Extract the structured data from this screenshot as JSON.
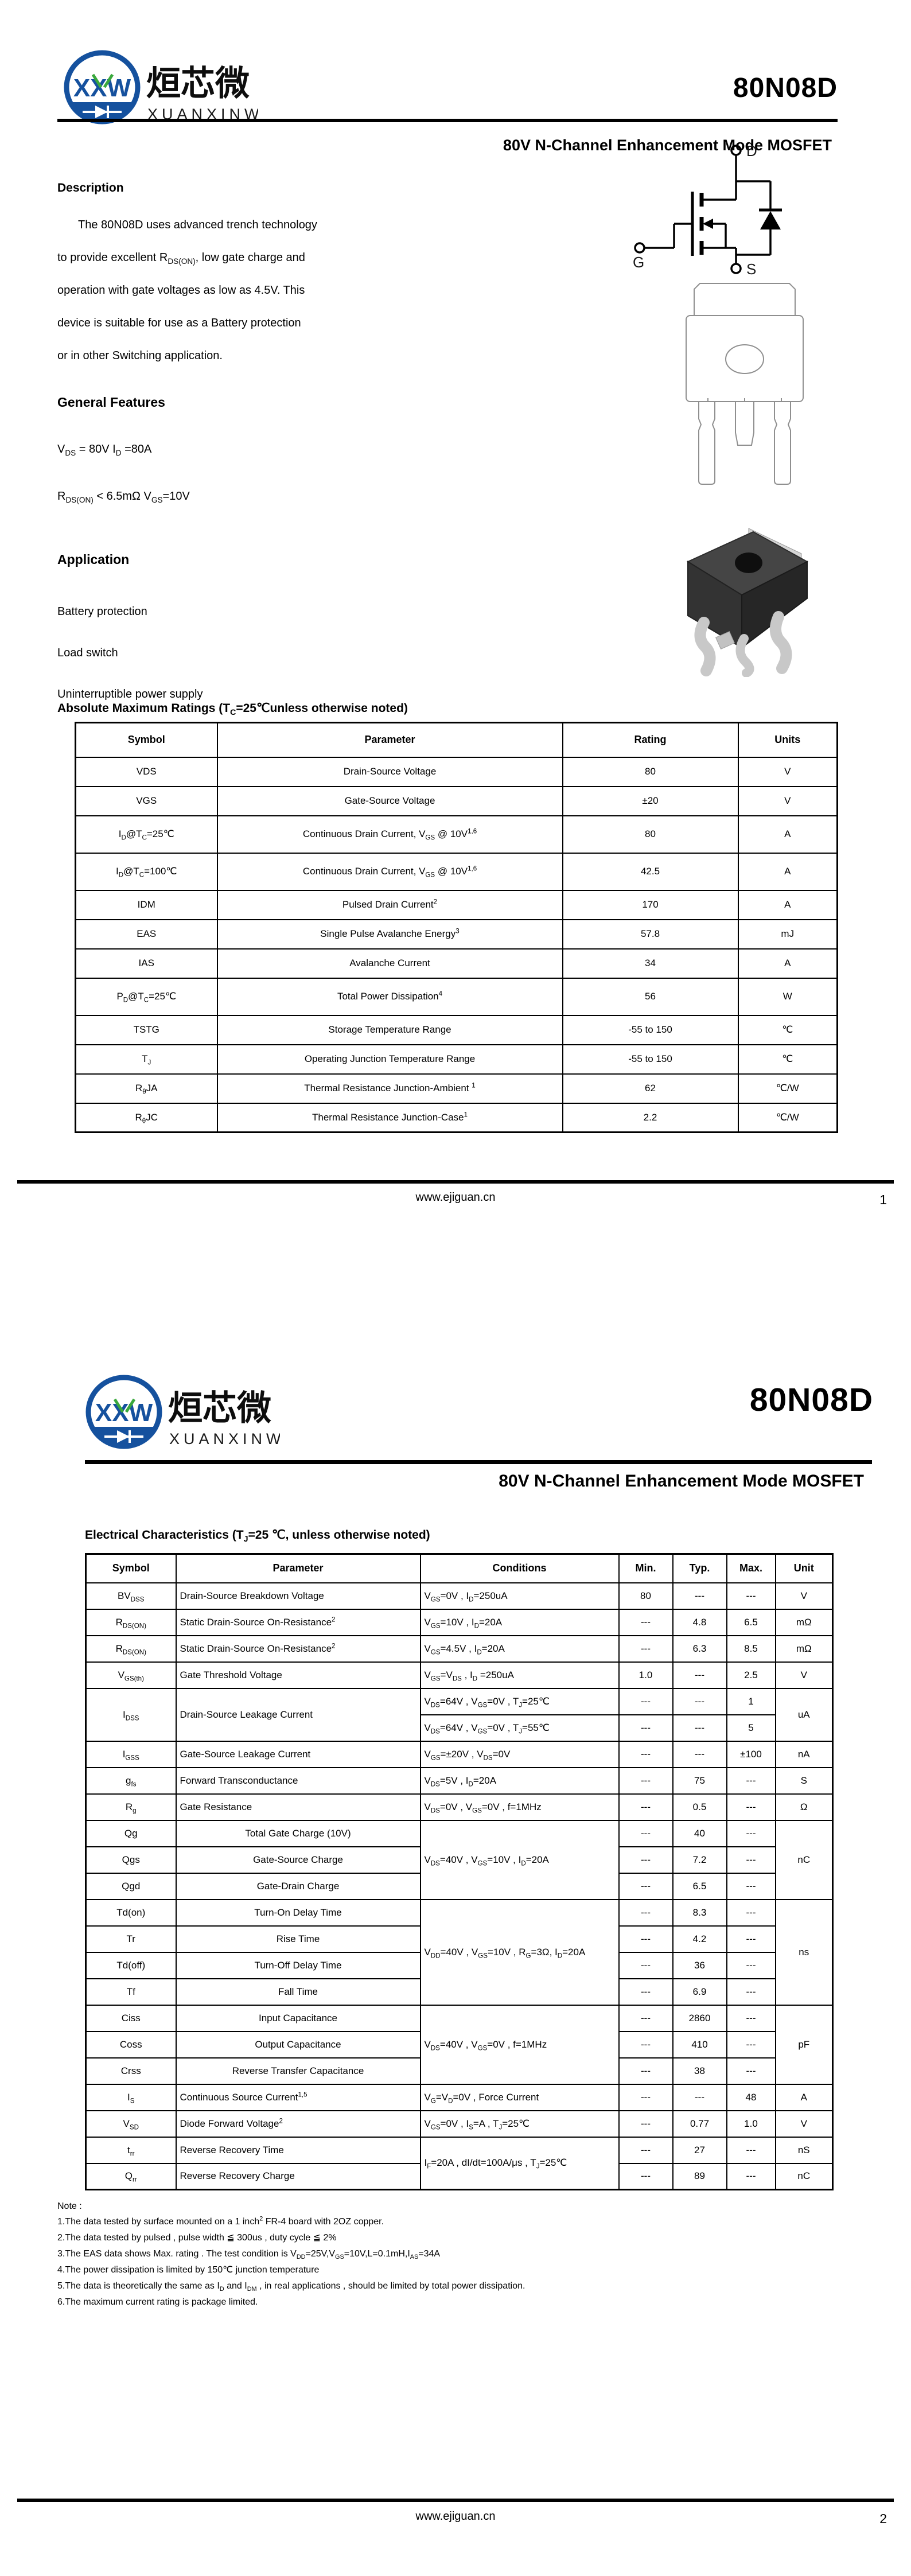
{
  "logo": {
    "monogram": "XXW",
    "name_zh": "烜芯微",
    "name_en": "XUANXINWEI",
    "blue": "#15519e",
    "green": "#3aa83c"
  },
  "doc": {
    "part_number": "80N08D",
    "subtitle": "80V N-Channel Enhancement Mode MOSFET",
    "footer_url": "www.ejiguan.cn"
  },
  "page1": {
    "page_number": "1",
    "description": {
      "heading": "Description",
      "lines": [
        "The  80N08D uses advanced trench technology",
        "to provide excellent R~DS(ON)~, low gate charge and",
        "operation with gate voltages as low as 4.5V. This",
        "device is suitable for use as a Battery protection",
        "or in other Switching application."
      ]
    },
    "general_features": {
      "heading": "General Features",
      "lines": [
        "V~DS~ = 80V  I~D~ =80A",
        "R~DS(ON)~ < 6.5mΩ V~GS~=10V"
      ]
    },
    "application": {
      "heading": "Application",
      "items": [
        "Battery protection",
        "Load switch",
        "Uninterruptible power supply"
      ]
    },
    "circuit_labels": {
      "drain": "D",
      "gate": "G",
      "source": "S"
    },
    "abs_max": {
      "heading": "Absolute Maximum Ratings (T~C~=25℃unless otherwise noted)",
      "columns": [
        "Symbol",
        "Parameter",
        "Rating",
        "Units"
      ],
      "col_align": [
        "c",
        "c",
        "c",
        "c"
      ],
      "rows": [
        [
          {
            "t": "VDS"
          },
          {
            "t": "Drain-Source Voltage"
          },
          {
            "t": "80"
          },
          {
            "t": "V"
          }
        ],
        [
          {
            "t": "VGS"
          },
          {
            "t": "Gate-Source Voltage"
          },
          {
            "t": "±20"
          },
          {
            "t": "V"
          }
        ],
        [
          {
            "t": "I~D~@T~C~=25℃"
          },
          {
            "t": "Continuous Drain Current, V~GS~ @ 10V^1,6^"
          },
          {
            "t": "80"
          },
          {
            "t": "A"
          }
        ],
        [
          {
            "t": "I~D~@T~C~=100℃"
          },
          {
            "t": "Continuous Drain Current, V~GS~ @ 10V^1,6^"
          },
          {
            "t": "42.5"
          },
          {
            "t": "A"
          }
        ],
        [
          {
            "t": "IDM"
          },
          {
            "t": "Pulsed Drain Current^2^"
          },
          {
            "t": "170"
          },
          {
            "t": "A"
          }
        ],
        [
          {
            "t": "EAS"
          },
          {
            "t": "Single Pulse Avalanche Energy^3^"
          },
          {
            "t": "57.8"
          },
          {
            "t": "mJ"
          }
        ],
        [
          {
            "t": "IAS"
          },
          {
            "t": "Avalanche Current"
          },
          {
            "t": "34"
          },
          {
            "t": "A"
          }
        ],
        [
          {
            "t": "P~D~@T~C~=25℃"
          },
          {
            "t": "Total Power Dissipation^4^"
          },
          {
            "t": "56"
          },
          {
            "t": "W"
          }
        ],
        [
          {
            "t": "TSTG"
          },
          {
            "t": "Storage Temperature Range"
          },
          {
            "t": "-55 to 150"
          },
          {
            "t": "℃"
          }
        ],
        [
          {
            "t": "T~J~"
          },
          {
            "t": "Operating Junction Temperature Range"
          },
          {
            "t": "-55 to 150"
          },
          {
            "t": "℃"
          }
        ],
        [
          {
            "t": "R~θ~JA"
          },
          {
            "t": "Thermal Resistance Junction-Ambient ^1^"
          },
          {
            "t": "62"
          },
          {
            "t": "℃/W"
          }
        ],
        [
          {
            "t": "R~θ~JC"
          },
          {
            "t": "Thermal Resistance Junction-Case^1^"
          },
          {
            "t": "2.2"
          },
          {
            "t": "℃/W"
          }
        ]
      ]
    }
  },
  "page2": {
    "page_number": "2",
    "elec": {
      "heading": "Electrical Characteristics (T~J~=25 ℃, unless otherwise noted)",
      "columns": [
        "Symbol",
        "Parameter",
        "Conditions",
        "Min.",
        "Typ.",
        "Max.",
        "Unit"
      ],
      "col_align": [
        "c",
        "l",
        "l",
        "c",
        "c",
        "c",
        "c"
      ],
      "rows": [
        [
          {
            "t": "BV~DSS~"
          },
          {
            "t": "Drain-Source Breakdown Voltage"
          },
          {
            "t": "V~GS~=0V , I~D~=250uA"
          },
          {
            "t": "80"
          },
          {
            "t": "---"
          },
          {
            "t": "---"
          },
          {
            "t": "V"
          }
        ],
        [
          {
            "t": "R~DS(ON)~"
          },
          {
            "t": "Static Drain-Source On-Resistance^2^"
          },
          {
            "t": "V~GS~=10V , I~D~=20A"
          },
          {
            "t": "---"
          },
          {
            "t": "4.8"
          },
          {
            "t": "6.5"
          },
          {
            "t": "mΩ"
          }
        ],
        [
          {
            "t": "R~DS(ON)~"
          },
          {
            "t": "Static Drain-Source On-Resistance^2^"
          },
          {
            "t": "V~GS~=4.5V , I~D~=20A"
          },
          {
            "t": "---"
          },
          {
            "t": "6.3"
          },
          {
            "t": "8.5"
          },
          {
            "t": "mΩ"
          }
        ],
        [
          {
            "t": "V~GS(th)~"
          },
          {
            "t": "Gate Threshold Voltage"
          },
          {
            "t": "V~GS~=V~DS~ , I~D~ =250uA"
          },
          {
            "t": "1.0"
          },
          {
            "t": "---"
          },
          {
            "t": "2.5"
          },
          {
            "t": "V"
          }
        ],
        [
          {
            "t": "I~DSS~",
            "rs": 2
          },
          {
            "t": "Drain-Source Leakage Current",
            "rs": 2
          },
          {
            "t": "V~DS~=64V , V~GS~=0V , T~J~=25℃"
          },
          {
            "t": "---"
          },
          {
            "t": "---"
          },
          {
            "t": "1"
          },
          {
            "t": "uA",
            "rs": 2
          }
        ],
        [
          {
            "t": "V~DS~=64V , V~GS~=0V , T~J~=55℃"
          },
          {
            "t": "---"
          },
          {
            "t": "---"
          },
          {
            "t": "5"
          }
        ],
        [
          {
            "t": "I~GSS~"
          },
          {
            "t": "Gate-Source Leakage Current"
          },
          {
            "t": "V~GS~=±20V , V~DS~=0V"
          },
          {
            "t": "---"
          },
          {
            "t": "---"
          },
          {
            "t": "±100"
          },
          {
            "t": "nA"
          }
        ],
        [
          {
            "t": "g~fs~"
          },
          {
            "t": "Forward Transconductance"
          },
          {
            "t": "V~DS~=5V , I~D~=20A"
          },
          {
            "t": "---"
          },
          {
            "t": "75"
          },
          {
            "t": "---"
          },
          {
            "t": "S"
          }
        ],
        [
          {
            "t": "R~g~"
          },
          {
            "t": "Gate Resistance"
          },
          {
            "t": "V~DS~=0V , V~GS~=0V , f=1MHz"
          },
          {
            "t": "---"
          },
          {
            "t": "0.5"
          },
          {
            "t": "---"
          },
          {
            "t": "Ω"
          }
        ],
        [
          {
            "t": "Qg"
          },
          {
            "t": "Total Gate Charge (10V)",
            "al": "c"
          },
          {
            "t": "V~DS~=40V , V~GS~=10V , I~D~=20A",
            "rs": 3
          },
          {
            "t": "---"
          },
          {
            "t": "40"
          },
          {
            "t": "---"
          },
          {
            "t": "nC",
            "rs": 3
          }
        ],
        [
          {
            "t": "Qgs"
          },
          {
            "t": "Gate-Source Charge",
            "al": "c"
          },
          {
            "t": "---"
          },
          {
            "t": "7.2"
          },
          {
            "t": "---"
          }
        ],
        [
          {
            "t": "Qgd"
          },
          {
            "t": "Gate-Drain Charge",
            "al": "c"
          },
          {
            "t": "---"
          },
          {
            "t": "6.5"
          },
          {
            "t": "---"
          }
        ],
        [
          {
            "t": "Td(on)"
          },
          {
            "t": "Turn-On Delay Time",
            "al": "c"
          },
          {
            "t": "V~DD~=40V , V~GS~=10V , R~G~=3Ω, I~D~=20A",
            "rs": 4
          },
          {
            "t": "---"
          },
          {
            "t": "8.3"
          },
          {
            "t": "---"
          },
          {
            "t": "ns",
            "rs": 4
          }
        ],
        [
          {
            "t": "Tr"
          },
          {
            "t": "Rise Time",
            "al": "c"
          },
          {
            "t": "---"
          },
          {
            "t": "4.2"
          },
          {
            "t": "---"
          }
        ],
        [
          {
            "t": "Td(off)"
          },
          {
            "t": "Turn-Off Delay Time",
            "al": "c"
          },
          {
            "t": "---"
          },
          {
            "t": "36"
          },
          {
            "t": "---"
          }
        ],
        [
          {
            "t": "Tf"
          },
          {
            "t": "Fall Time",
            "al": "c"
          },
          {
            "t": "---"
          },
          {
            "t": "6.9"
          },
          {
            "t": "---"
          }
        ],
        [
          {
            "t": "Ciss"
          },
          {
            "t": "Input Capacitance",
            "al": "c"
          },
          {
            "t": "V~DS~=40V , V~GS~=0V , f=1MHz",
            "rs": 3
          },
          {
            "t": "---"
          },
          {
            "t": "2860"
          },
          {
            "t": "---"
          },
          {
            "t": "pF",
            "rs": 3
          }
        ],
        [
          {
            "t": "Coss"
          },
          {
            "t": "Output Capacitance",
            "al": "c"
          },
          {
            "t": "---"
          },
          {
            "t": "410"
          },
          {
            "t": "---"
          }
        ],
        [
          {
            "t": "Crss"
          },
          {
            "t": "Reverse Transfer Capacitance",
            "al": "c"
          },
          {
            "t": "---"
          },
          {
            "t": "38"
          },
          {
            "t": "---"
          }
        ],
        [
          {
            "t": "I~S~"
          },
          {
            "t": "Continuous Source Current^1,5^"
          },
          {
            "t": "V~G~=V~D~=0V , Force Current"
          },
          {
            "t": "---"
          },
          {
            "t": "---"
          },
          {
            "t": "48"
          },
          {
            "t": "A"
          }
        ],
        [
          {
            "t": "V~SD~"
          },
          {
            "t": "Diode Forward Voltage^2^"
          },
          {
            "t": "V~GS~=0V , I~S~=A , T~J~=25℃"
          },
          {
            "t": "---"
          },
          {
            "t": "0.77"
          },
          {
            "t": "1.0"
          },
          {
            "t": "V"
          }
        ],
        [
          {
            "t": "t~rr~"
          },
          {
            "t": "Reverse Recovery Time"
          },
          {
            "t": "I~F~=20A  ,  dI/dt=100A/μs  , T~J~=25℃",
            "rs": 2
          },
          {
            "t": "---"
          },
          {
            "t": "27"
          },
          {
            "t": "---"
          },
          {
            "t": "nS"
          }
        ],
        [
          {
            "t": "Q~rr~"
          },
          {
            "t": "Reverse Recovery Charge"
          },
          {
            "t": "---"
          },
          {
            "t": "89"
          },
          {
            "t": "---"
          },
          {
            "t": "nC"
          }
        ]
      ]
    },
    "notes": {
      "heading": "Note :",
      "items": [
        "1.The data tested by surface mounted on a 1 inch^2^ FR-4 board with 2OZ copper.",
        "2.The data tested by pulsed , pulse width ≦ 300us , duty cycle ≦ 2%",
        "3.The EAS data shows Max. rating . The test condition is V~DD~=25V,V~GS~=10V,L=0.1mH,I~AS~=34A",
        "4.The power dissipation is limited by 150℃ junction temperature",
        "5.The data is theoretically the same as I~D~ and I~DM~ , in real applications , should be limited by total power dissipation.",
        "6.The maximum current rating is package limited."
      ]
    }
  }
}
